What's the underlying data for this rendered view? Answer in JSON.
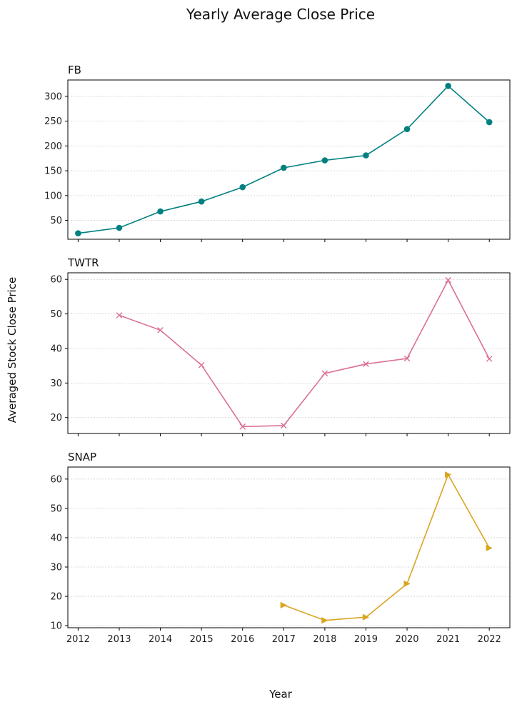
{
  "figure": {
    "title": "Yearly Average Close Price",
    "xlabel": "Year",
    "ylabel": "Averaged Stock Close Price"
  },
  "chart_data": [
    {
      "type": "line",
      "title": "FB",
      "x": [
        2012,
        2013,
        2014,
        2015,
        2016,
        2017,
        2018,
        2019,
        2020,
        2021,
        2022
      ],
      "values": [
        24,
        35,
        68,
        88,
        117,
        156,
        171,
        181,
        234,
        321,
        248
      ],
      "color": "#008080",
      "marker": "circle",
      "ylim": [
        12,
        333
      ],
      "yticks": [
        50,
        100,
        150,
        200,
        250,
        300
      ],
      "grid": true
    },
    {
      "type": "line",
      "title": "TWTR",
      "x": [
        2013,
        2014,
        2015,
        2016,
        2017,
        2018,
        2019,
        2020,
        2021,
        2022
      ],
      "values": [
        49.6,
        45.3,
        35.2,
        17.4,
        17.7,
        32.8,
        35.5,
        37.1,
        59.8,
        37.0
      ],
      "color": "#DB7093",
      "marker": "x",
      "ylim": [
        15.4,
        61.9
      ],
      "yticks": [
        20,
        30,
        40,
        50,
        60
      ],
      "grid": true
    },
    {
      "type": "line",
      "title": "SNAP",
      "x": [
        2017,
        2018,
        2019,
        2020,
        2021,
        2022
      ],
      "values": [
        17.0,
        11.8,
        12.9,
        24.3,
        61.5,
        36.5
      ],
      "color": "#DAA520",
      "marker": "triangle-right",
      "ylim": [
        9.3,
        64.1
      ],
      "yticks": [
        10,
        20,
        30,
        40,
        50,
        60
      ],
      "grid": true
    }
  ],
  "xaxis": {
    "ticks": [
      2012,
      2013,
      2014,
      2015,
      2016,
      2017,
      2018,
      2019,
      2020,
      2021,
      2022
    ]
  }
}
